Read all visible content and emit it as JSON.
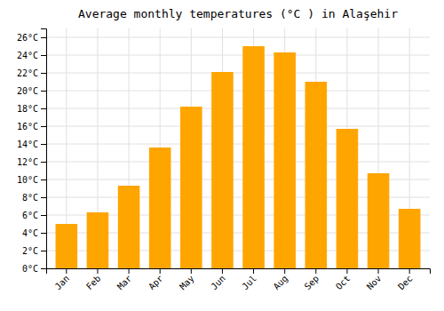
{
  "chart_data": {
    "type": "bar",
    "title": "Average monthly temperatures (°C ) in Alaşehir",
    "categories": [
      "Jan",
      "Feb",
      "Mar",
      "Apr",
      "May",
      "Jun",
      "Jul",
      "Aug",
      "Sep",
      "Oct",
      "Nov",
      "Dec"
    ],
    "values": [
      5.0,
      6.3,
      9.3,
      13.6,
      18.2,
      22.1,
      25.0,
      24.3,
      21.0,
      15.7,
      10.7,
      6.7
    ],
    "color": "#FFA500",
    "ylim": [
      0,
      27
    ],
    "yticks": [
      {
        "value": 0,
        "label": "0°C"
      },
      {
        "value": 2,
        "label": "2°C"
      },
      {
        "value": 4,
        "label": "4°C"
      },
      {
        "value": 6,
        "label": "6°C"
      },
      {
        "value": 8,
        "label": "8°C"
      },
      {
        "value": 10,
        "label": "10°C"
      },
      {
        "value": 12,
        "label": "12°C"
      },
      {
        "value": 14,
        "label": "14°C"
      },
      {
        "value": 16,
        "label": "16°C"
      },
      {
        "value": 18,
        "label": "18°C"
      },
      {
        "value": 20,
        "label": "20°C"
      },
      {
        "value": 22,
        "label": "22°C"
      },
      {
        "value": 24,
        "label": "24°C"
      },
      {
        "value": 26,
        "label": "26°C"
      }
    ],
    "grid": true
  }
}
